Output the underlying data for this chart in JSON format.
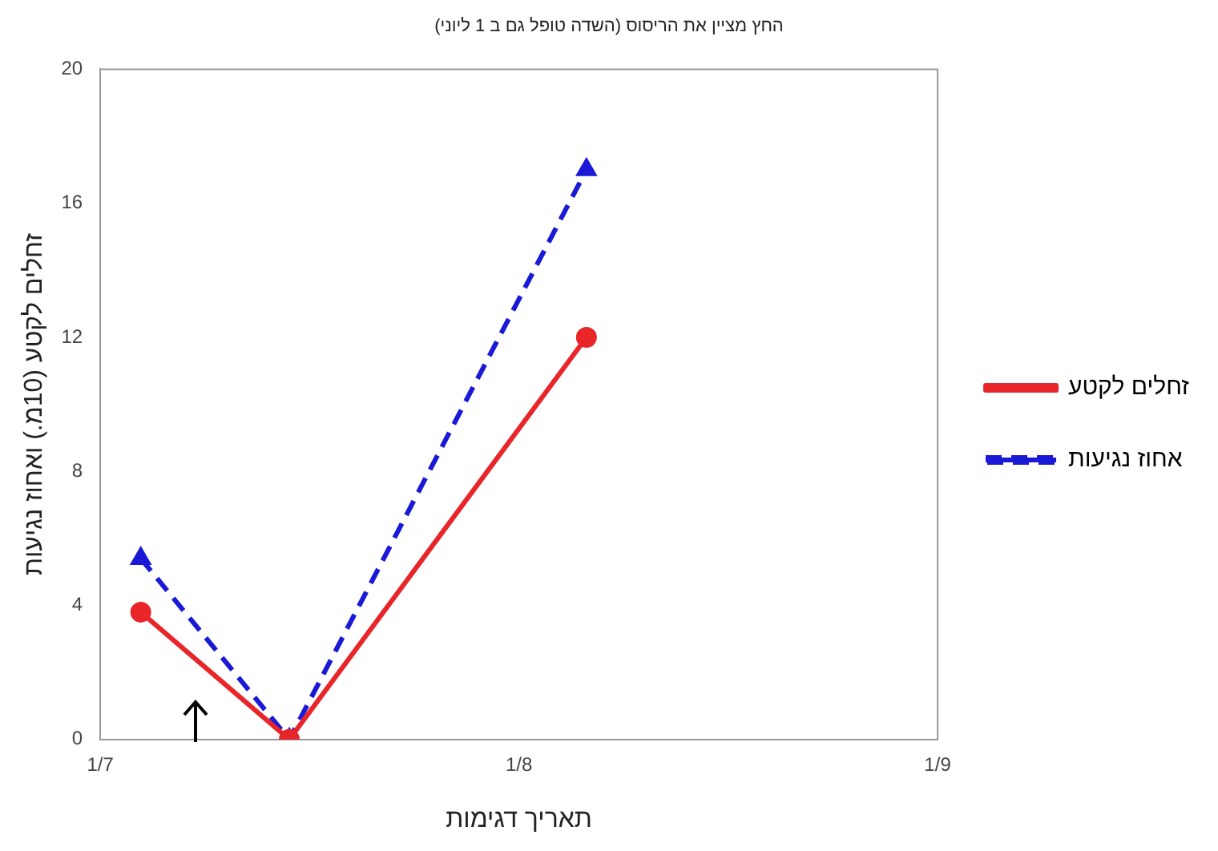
{
  "chart_data": {
    "type": "line",
    "title": "החץ מציין את הריסוס (השדה טופל גם ב 1 ליוני)",
    "xlabel": "תאריך דגימות",
    "ylabel": "זחלים לקטע (10מ.) ואחוז נגיעות",
    "x": [
      "--07-04",
      "--07-15",
      "--08-06"
    ],
    "series": [
      {
        "name": "זחלים לקטע",
        "color": "#e8262a",
        "values": [
          3.8,
          0,
          12
        ],
        "marker": "circle",
        "line_style": "solid"
      },
      {
        "name": "אחוז נגיעות",
        "color": "#1a1ad6",
        "values": [
          5.4,
          0,
          17
        ],
        "marker": "triangle",
        "line_style": "dashed"
      }
    ],
    "xlim": [
      "--07-01",
      "--09-01"
    ],
    "xticks": [
      {
        "value": "--07-01",
        "label": "1/7"
      },
      {
        "value": "--08-01",
        "label": "1/8"
      },
      {
        "value": "--09-01",
        "label": "1/9"
      }
    ],
    "ylim": [
      0,
      20
    ],
    "yticks": [
      0,
      4,
      8,
      12,
      16,
      20
    ],
    "grid": false,
    "legend": "right"
  }
}
